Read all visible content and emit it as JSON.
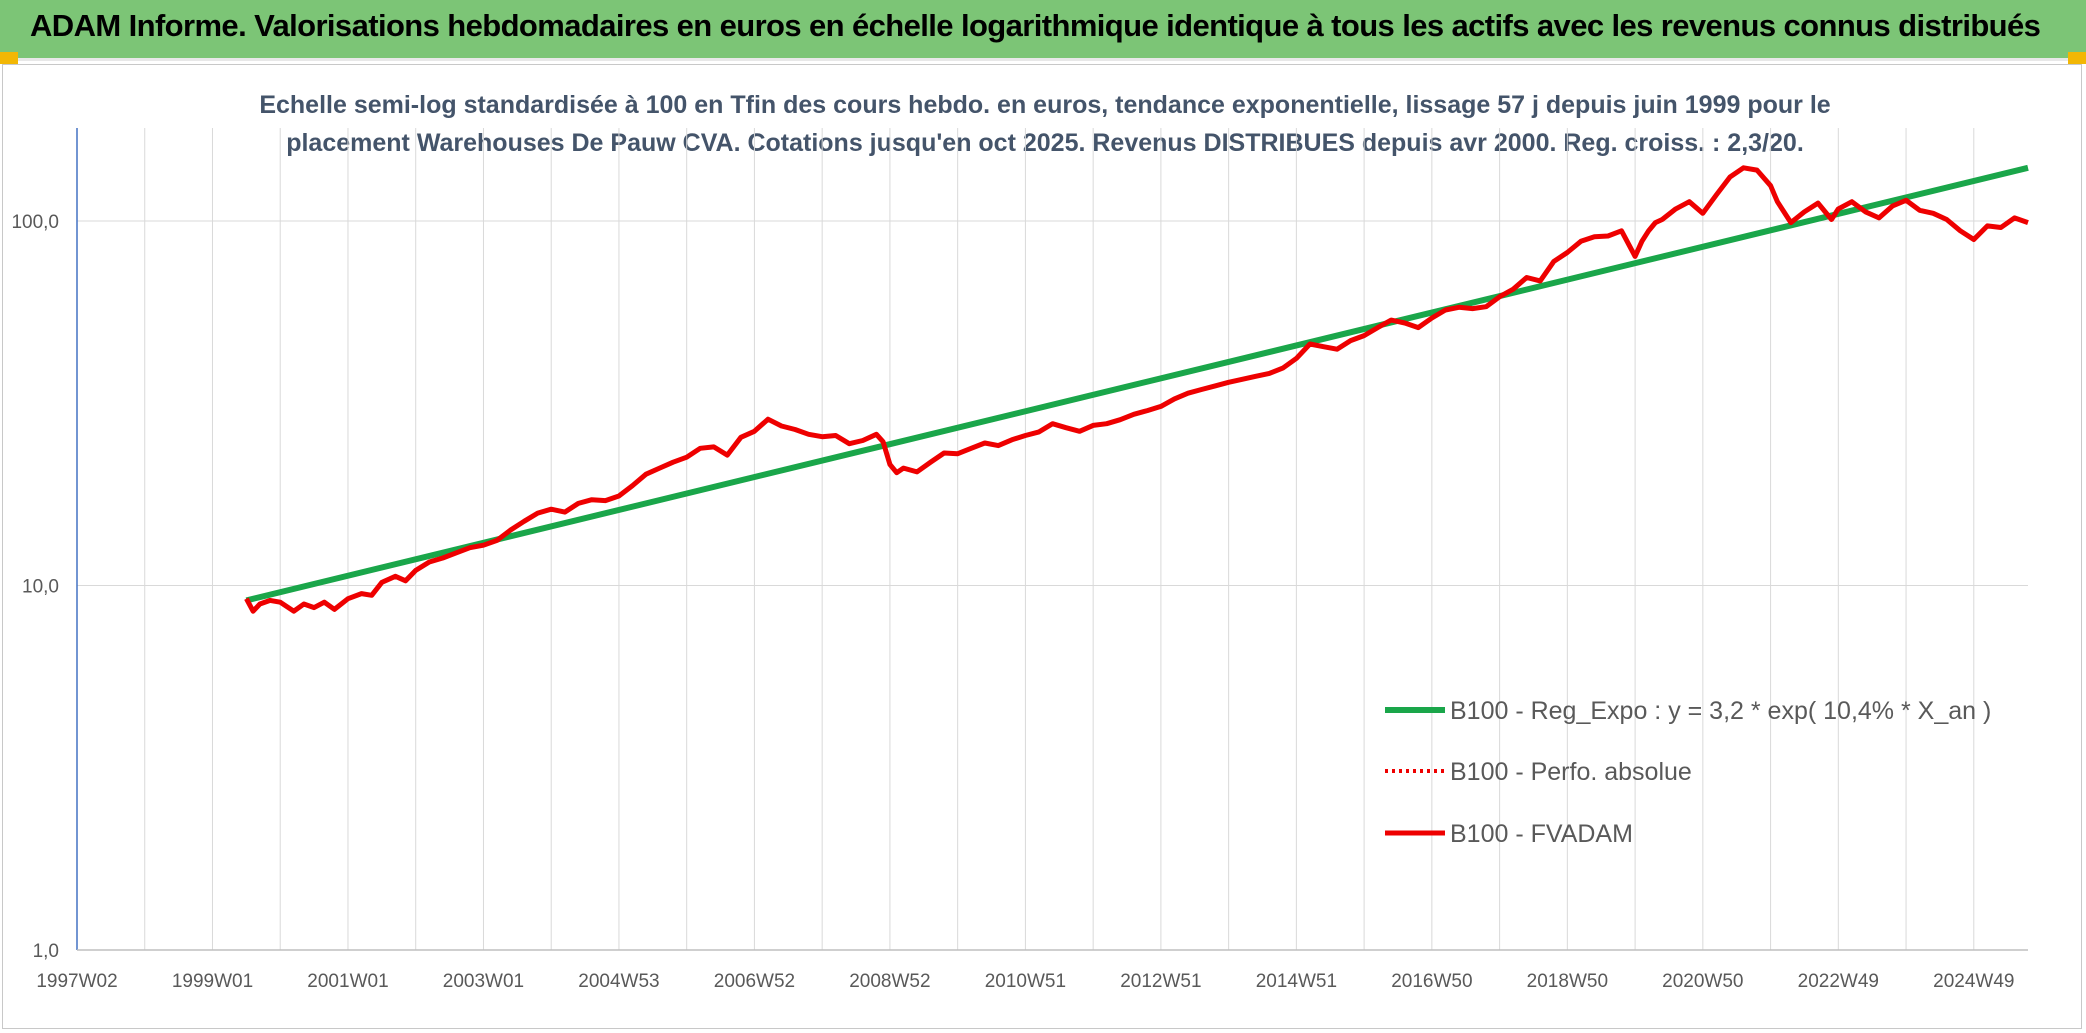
{
  "banner": {
    "title": "ADAM Informe. Valorisations hebdomadaires en euros en échelle logarithmique identique à tous les actifs avec les revenus connus distribués"
  },
  "colors": {
    "banner_bg": "#7cc576",
    "accent": "#f2b705",
    "trend": "#1aa64a",
    "fvadam": "#ee0000",
    "subtitle": "#44546a",
    "grid": "#d9d9d9",
    "axis": "#4472c4"
  },
  "chart_data": {
    "type": "line",
    "title_line1": "Echelle semi-log standardisée à 100 en Tfin des cours hebdo. en euros, tendance exponentielle, lissage 57 j depuis juin 1999 pour le",
    "title_line2": "placement Warehouses De Pauw CVA. Cotations jusqu'en oct 2025. Revenus DISTRIBUES depuis avr 2000. Reg. croiss. : 2,3/20.",
    "y_scale": "log",
    "ylim": [
      1,
      180
    ],
    "xlim": [
      1997.0,
      2025.8
    ],
    "y_ticks": [
      {
        "value": 100,
        "label": "100,0"
      },
      {
        "value": 10,
        "label": "10,0"
      },
      {
        "value": 1,
        "label": "1,0"
      }
    ],
    "x_ticks": [
      {
        "year": 1997.0,
        "label": "1997W02"
      },
      {
        "year": 1999.0,
        "label": "1999W01"
      },
      {
        "year": 2001.0,
        "label": "2001W01"
      },
      {
        "year": 2003.0,
        "label": "2003W01"
      },
      {
        "year": 2005.0,
        "label": "2004W53"
      },
      {
        "year": 2007.0,
        "label": "2006W52"
      },
      {
        "year": 2009.0,
        "label": "2008W52"
      },
      {
        "year": 2011.0,
        "label": "2010W51"
      },
      {
        "year": 2013.0,
        "label": "2012W51"
      },
      {
        "year": 2015.0,
        "label": "2014W51"
      },
      {
        "year": 2017.0,
        "label": "2016W50"
      },
      {
        "year": 2019.0,
        "label": "2018W50"
      },
      {
        "year": 2021.0,
        "label": "2020W50"
      },
      {
        "year": 2023.0,
        "label": "2022W49"
      },
      {
        "year": 2025.0,
        "label": "2024W49"
      }
    ],
    "grid": true,
    "legend_position": "right",
    "series": [
      {
        "name": "B100 - Reg_Expo : y = 3,2 * exp( 10,4% *  X_an )",
        "style": "solid-green",
        "x": [
          1999.5,
          2025.8
        ],
        "y": [
          9.1,
          140
        ]
      },
      {
        "name": "B100 - Perfo. absolue",
        "style": "dotted-red",
        "x": [],
        "y": []
      },
      {
        "name": "B100 - FVADAM",
        "style": "solid-red",
        "x": [
          1999.5,
          1999.6,
          1999.7,
          1999.85,
          2000.0,
          2000.2,
          2000.35,
          2000.5,
          2000.65,
          2000.8,
          2001.0,
          2001.2,
          2001.35,
          2001.5,
          2001.7,
          2001.85,
          2002.0,
          2002.2,
          2002.4,
          2002.6,
          2002.8,
          2003.0,
          2003.2,
          2003.4,
          2003.6,
          2003.8,
          2004.0,
          2004.2,
          2004.4,
          2004.6,
          2004.8,
          2005.0,
          2005.2,
          2005.4,
          2005.6,
          2005.8,
          2006.0,
          2006.2,
          2006.4,
          2006.6,
          2006.8,
          2007.0,
          2007.2,
          2007.4,
          2007.6,
          2007.8,
          2008.0,
          2008.2,
          2008.4,
          2008.6,
          2008.8,
          2008.9,
          2009.0,
          2009.1,
          2009.2,
          2009.4,
          2009.6,
          2009.8,
          2010.0,
          2010.2,
          2010.4,
          2010.6,
          2010.8,
          2011.0,
          2011.2,
          2011.4,
          2011.6,
          2011.8,
          2012.0,
          2012.2,
          2012.4,
          2012.6,
          2012.8,
          2013.0,
          2013.2,
          2013.4,
          2013.6,
          2013.8,
          2014.0,
          2014.2,
          2014.4,
          2014.6,
          2014.8,
          2015.0,
          2015.2,
          2015.4,
          2015.6,
          2015.8,
          2016.0,
          2016.2,
          2016.4,
          2016.6,
          2016.8,
          2017.0,
          2017.2,
          2017.4,
          2017.6,
          2017.8,
          2018.0,
          2018.2,
          2018.4,
          2018.6,
          2018.8,
          2019.0,
          2019.2,
          2019.4,
          2019.6,
          2019.8,
          2020.0,
          2020.1,
          2020.2,
          2020.3,
          2020.4,
          2020.6,
          2020.8,
          2021.0,
          2021.2,
          2021.4,
          2021.6,
          2021.8,
          2022.0,
          2022.1,
          2022.3,
          2022.5,
          2022.7,
          2022.9,
          2023.0,
          2023.2,
          2023.4,
          2023.6,
          2023.8,
          2024.0,
          2024.2,
          2024.4,
          2024.6,
          2024.8,
          2025.0,
          2025.2,
          2025.4,
          2025.6,
          2025.8
        ],
        "y": [
          9.2,
          8.5,
          8.9,
          9.1,
          9.0,
          8.5,
          8.9,
          8.7,
          9.0,
          8.6,
          9.2,
          9.5,
          9.4,
          10.2,
          10.6,
          10.3,
          11.0,
          11.6,
          11.9,
          12.3,
          12.7,
          12.9,
          13.3,
          14.2,
          15.0,
          15.8,
          16.2,
          15.9,
          16.8,
          17.2,
          17.1,
          17.6,
          18.8,
          20.2,
          21.0,
          21.8,
          22.5,
          23.8,
          24.0,
          22.8,
          25.5,
          26.5,
          28.6,
          27.4,
          26.8,
          26.0,
          25.6,
          25.8,
          24.5,
          25.0,
          26.0,
          24.8,
          21.5,
          20.4,
          21.0,
          20.5,
          21.8,
          23.1,
          23.0,
          23.8,
          24.6,
          24.2,
          25.1,
          25.8,
          26.4,
          27.8,
          27.1,
          26.5,
          27.5,
          27.8,
          28.5,
          29.5,
          30.2,
          31.0,
          32.5,
          33.7,
          34.5,
          35.3,
          36.1,
          36.8,
          37.5,
          38.2,
          39.5,
          42.0,
          46.0,
          45.2,
          44.5,
          47.0,
          48.5,
          51.0,
          53.5,
          52.5,
          51.0,
          54.2,
          57.0,
          58.0,
          57.5,
          58.2,
          62.0,
          65.0,
          70.0,
          68.5,
          77.5,
          82.0,
          88.0,
          90.5,
          91.0,
          94.0,
          80.0,
          88.0,
          94.0,
          99.0,
          101.0,
          108.0,
          113.0,
          105.0,
          118.0,
          132.0,
          140.0,
          138.0,
          125.0,
          113.0,
          99.0,
          106.0,
          112.0,
          101.0,
          108.0,
          113.0,
          106.0,
          102.0,
          110.0,
          114.0,
          107.0,
          105.0,
          101.0,
          94.0,
          89.0,
          97.0,
          96.0,
          102.0,
          99.0
        ]
      }
    ]
  }
}
